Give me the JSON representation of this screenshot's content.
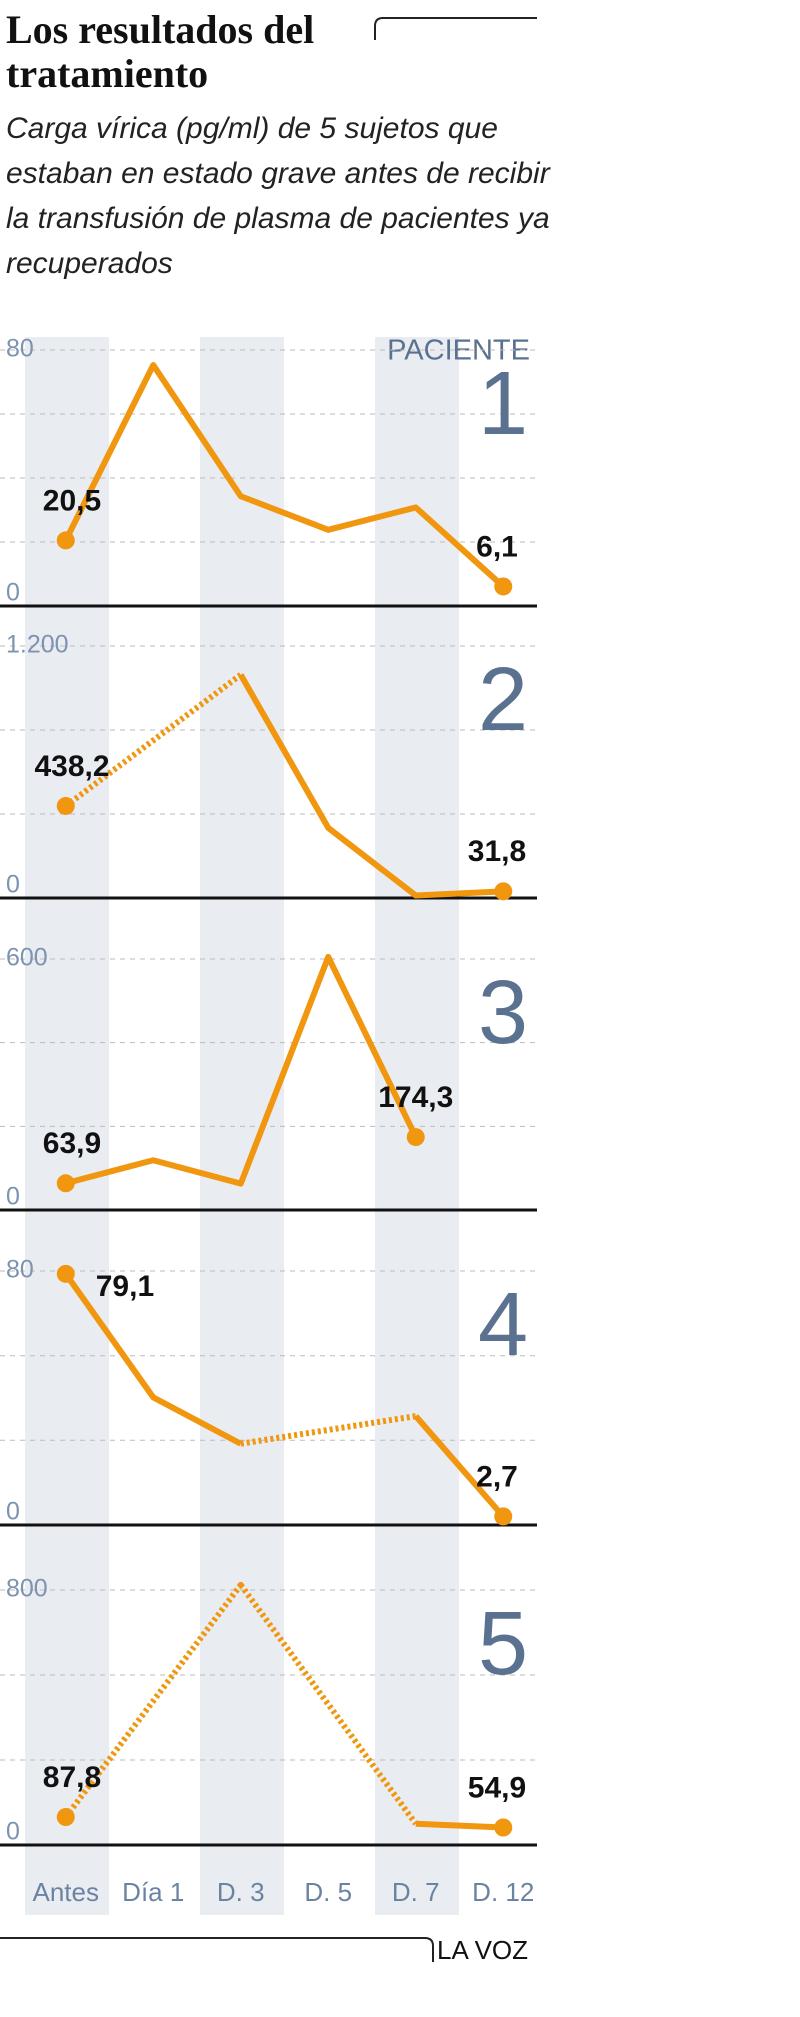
{
  "header": {
    "title": "Los resultados del tratamiento",
    "subtitle": "Carga vírica (pg/ml) de 5 sujetos que estaban en estado grave antes de recibir la transfusión de plasma de pacientes ya recuperados"
  },
  "chart_data": {
    "type": "line",
    "categories": [
      "Antes",
      "Día 1",
      "D. 3",
      "D. 5",
      "D. 7",
      "D. 12"
    ],
    "panel_title": "PACIENTE",
    "color": "#f0960f",
    "gap_style": "dotted",
    "grid": true,
    "panels": [
      {
        "name": "1",
        "ylim": [
          0,
          80
        ],
        "yticks": [
          0,
          80
        ],
        "minor_yticks": [
          20,
          40,
          60
        ],
        "values": [
          20.5,
          75.3,
          34.3,
          23.8,
          30.8,
          6.1
        ],
        "value_labels": [
          "20,5",
          null,
          null,
          null,
          null,
          "6,1"
        ]
      },
      {
        "name": "2",
        "ylim": [
          0,
          1200
        ],
        "yticks": [
          0,
          {
            "value": 1200,
            "label": "1.200"
          }
        ],
        "minor_yticks": [
          400,
          800
        ],
        "values": [
          438.2,
          null,
          1063,
          334,
          12,
          31.8
        ],
        "value_labels": [
          "438,2",
          null,
          null,
          null,
          null,
          "31,8"
        ]
      },
      {
        "name": "3",
        "ylim": [
          0,
          600
        ],
        "yticks": [
          0,
          600
        ],
        "minor_yticks": [
          200,
          400
        ],
        "values": [
          63.9,
          119,
          63,
          605,
          174.3,
          null
        ],
        "value_labels": [
          "63,9",
          null,
          null,
          null,
          "174,3",
          null
        ]
      },
      {
        "name": "4",
        "ylim": [
          0,
          80
        ],
        "yticks": [
          0,
          80
        ],
        "minor_yticks": [
          26.7,
          53.3
        ],
        "values": [
          79.1,
          40.2,
          25.6,
          null,
          34.3,
          2.7
        ],
        "value_labels": [
          "79,1",
          null,
          null,
          null,
          null,
          "2,7"
        ]
      },
      {
        "name": "5",
        "ylim": [
          0,
          800
        ],
        "yticks": [
          0,
          800
        ],
        "minor_yticks": [
          266.7,
          533.3
        ],
        "values": [
          87.8,
          null,
          816,
          null,
          66.7,
          54.9
        ],
        "value_labels": [
          "87,8",
          null,
          null,
          null,
          null,
          "54,9"
        ]
      }
    ]
  },
  "source": "LA VOZ"
}
